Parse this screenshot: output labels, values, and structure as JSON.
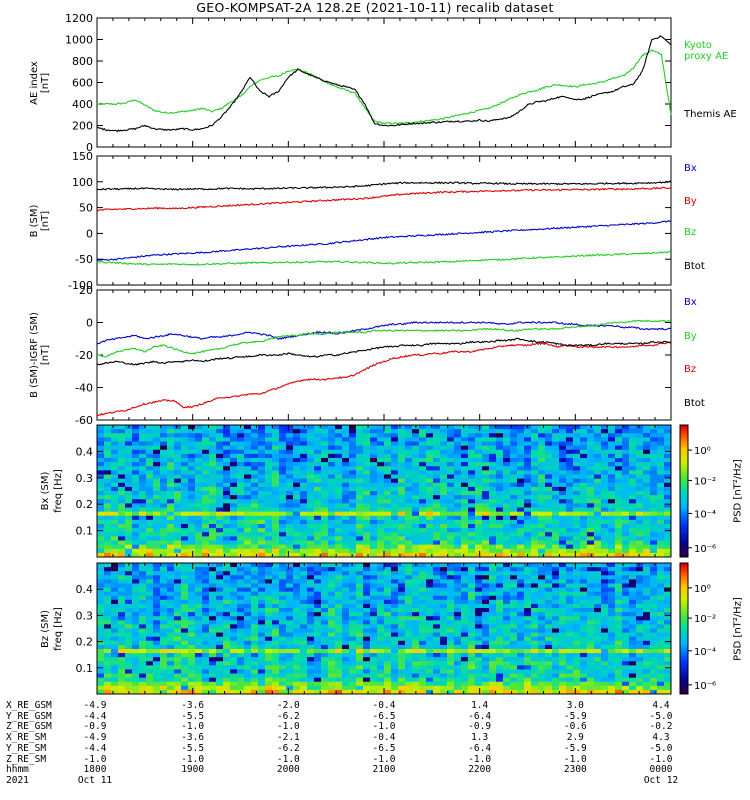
{
  "title": "GEO-KOMPSAT-2A 128.2E (2021-10-11) recalib dataset",
  "colors": {
    "black": "#000000",
    "blue": "#0000cc",
    "red": "#dd0000",
    "green": "#22cc22"
  },
  "chart_data": [
    {
      "type": "line",
      "panel": "ae",
      "ylabel": "AE index",
      "yunit": "[nT]",
      "ylim": [
        0,
        1200
      ],
      "yticks": [
        "0",
        "200",
        "400",
        "600",
        "800",
        "1000",
        "1200"
      ],
      "x_hours": [
        18.0,
        18.1,
        18.2,
        18.3,
        18.4,
        18.5,
        18.6,
        18.7,
        18.8,
        18.9,
        19.0,
        19.1,
        19.2,
        19.3,
        19.4,
        19.5,
        19.6,
        19.7,
        19.8,
        19.9,
        20.0,
        20.1,
        20.2,
        20.3,
        20.4,
        20.5,
        20.6,
        20.7,
        20.8,
        20.9,
        21.0,
        21.1,
        21.2,
        21.3,
        21.4,
        21.5,
        21.6,
        21.7,
        21.8,
        21.9,
        22.0,
        22.1,
        22.2,
        22.3,
        22.4,
        22.5,
        22.6,
        22.7,
        22.8,
        22.9,
        23.0,
        23.1,
        23.2,
        23.3,
        23.4,
        23.5,
        23.6,
        23.7,
        23.8,
        23.9,
        24.0
      ],
      "series": [
        {
          "name": "Kyoto proxy AE",
          "color": "#22cc22",
          "values": [
            400,
            400,
            400,
            410,
            440,
            390,
            340,
            320,
            320,
            330,
            340,
            360,
            330,
            360,
            420,
            470,
            560,
            620,
            650,
            660,
            710,
            720,
            690,
            650,
            600,
            560,
            530,
            500,
            360,
            240,
            220,
            220,
            220,
            230,
            240,
            250,
            260,
            280,
            300,
            320,
            340,
            360,
            400,
            440,
            480,
            510,
            530,
            560,
            580,
            570,
            560,
            580,
            590,
            610,
            640,
            660,
            730,
            850,
            900,
            860,
            300
          ]
        },
        {
          "name": "Themis AE",
          "color": "#000000",
          "values": [
            180,
            160,
            150,
            160,
            170,
            200,
            170,
            160,
            160,
            170,
            160,
            170,
            200,
            280,
            380,
            500,
            650,
            520,
            470,
            520,
            650,
            720,
            680,
            640,
            610,
            580,
            560,
            530,
            400,
            220,
            200,
            200,
            210,
            220,
            220,
            230,
            230,
            240,
            240,
            240,
            250,
            240,
            260,
            270,
            320,
            390,
            420,
            430,
            460,
            470,
            440,
            450,
            480,
            500,
            520,
            560,
            580,
            700,
            1000,
            1030,
            950
          ]
        }
      ]
    },
    {
      "type": "line",
      "panel": "b",
      "ylabel": "B (SM)",
      "yunit": "[nT]",
      "ylim": [
        -100,
        150
      ],
      "yticks": [
        "-100",
        "-50",
        "0",
        "50",
        "100",
        "150"
      ],
      "x_hours": [
        18.0,
        18.1,
        18.2,
        18.3,
        18.4,
        18.5,
        18.6,
        18.7,
        18.8,
        18.9,
        19.0,
        19.1,
        19.2,
        19.3,
        19.4,
        19.5,
        19.6,
        19.7,
        19.8,
        19.9,
        20.0,
        20.1,
        20.2,
        20.3,
        20.4,
        20.5,
        20.6,
        20.7,
        20.8,
        20.9,
        21.0,
        21.1,
        21.2,
        21.3,
        21.4,
        21.5,
        21.6,
        21.7,
        21.8,
        21.9,
        22.0,
        22.1,
        22.2,
        22.3,
        22.4,
        22.5,
        22.6,
        22.7,
        22.8,
        22.9,
        23.0,
        23.1,
        23.2,
        23.3,
        23.4,
        23.5,
        23.6,
        23.7,
        23.8,
        23.9,
        24.0
      ],
      "series": [
        {
          "name": "Bx",
          "color": "#0000cc",
          "values": [
            -52,
            -51,
            -50,
            -48,
            -46,
            -44,
            -42,
            -41,
            -40,
            -39,
            -38,
            -37,
            -36,
            -34,
            -33,
            -32,
            -30,
            -29,
            -28,
            -26,
            -25,
            -24,
            -22,
            -21,
            -20,
            -18,
            -16,
            -14,
            -12,
            -10,
            -8,
            -7,
            -6,
            -5,
            -4,
            -3,
            -2,
            -1,
            0,
            1,
            2,
            3,
            4,
            5,
            6,
            7,
            8,
            9,
            10,
            11,
            12,
            13,
            14,
            15,
            16,
            17,
            18,
            19,
            20,
            22,
            24
          ]
        },
        {
          "name": "By",
          "color": "#dd0000",
          "values": [
            45,
            46,
            47,
            47,
            48,
            48,
            49,
            49,
            48,
            49,
            50,
            51,
            52,
            53,
            54,
            55,
            56,
            57,
            58,
            59,
            60,
            61,
            62,
            63,
            64,
            65,
            66,
            67,
            68,
            70,
            72,
            74,
            76,
            77,
            78,
            79,
            80,
            80,
            81,
            81,
            82,
            82,
            83,
            83,
            83,
            84,
            84,
            84,
            84,
            85,
            85,
            85,
            85,
            86,
            86,
            86,
            86,
            87,
            87,
            88,
            88
          ]
        },
        {
          "name": "Bz",
          "color": "#22cc22",
          "values": [
            -55,
            -56,
            -57,
            -58,
            -59,
            -60,
            -60,
            -60,
            -59,
            -60,
            -60,
            -60,
            -59,
            -59,
            -58,
            -58,
            -57,
            -57,
            -57,
            -56,
            -56,
            -56,
            -56,
            -55,
            -55,
            -55,
            -55,
            -56,
            -56,
            -57,
            -58,
            -58,
            -57,
            -57,
            -56,
            -56,
            -55,
            -55,
            -54,
            -53,
            -52,
            -51,
            -51,
            -50,
            -49,
            -48,
            -47,
            -47,
            -46,
            -45,
            -44,
            -43,
            -42,
            -42,
            -41,
            -40,
            -40,
            -39,
            -38,
            -37,
            -36
          ]
        },
        {
          "name": "Btot",
          "color": "#000000",
          "values": [
            85,
            86,
            86,
            86,
            87,
            87,
            86,
            86,
            85,
            86,
            86,
            86,
            86,
            87,
            87,
            87,
            86,
            87,
            87,
            87,
            88,
            88,
            88,
            89,
            89,
            90,
            90,
            91,
            92,
            94,
            96,
            97,
            98,
            98,
            98,
            98,
            98,
            98,
            98,
            97,
            97,
            97,
            97,
            96,
            96,
            96,
            96,
            96,
            96,
            96,
            96,
            96,
            96,
            97,
            97,
            97,
            97,
            98,
            98,
            99,
            100
          ]
        }
      ]
    },
    {
      "type": "line",
      "panel": "dbb",
      "ylabel": "B (SM)-IGRF (SM)",
      "yunit": "[nT]",
      "ylim": [
        -60,
        20
      ],
      "yticks": [
        "-60",
        "-40",
        "-20",
        "0",
        "20"
      ],
      "x_hours": [
        18.0,
        18.1,
        18.2,
        18.3,
        18.4,
        18.5,
        18.6,
        18.7,
        18.8,
        18.9,
        19.0,
        19.1,
        19.2,
        19.3,
        19.4,
        19.5,
        19.6,
        19.7,
        19.8,
        19.9,
        20.0,
        20.1,
        20.2,
        20.3,
        20.4,
        20.5,
        20.6,
        20.7,
        20.8,
        20.9,
        21.0,
        21.1,
        21.2,
        21.3,
        21.4,
        21.5,
        21.6,
        21.7,
        21.8,
        21.9,
        22.0,
        22.1,
        22.2,
        22.3,
        22.4,
        22.5,
        22.6,
        22.7,
        22.8,
        22.9,
        23.0,
        23.1,
        23.2,
        23.3,
        23.4,
        23.5,
        23.6,
        23.7,
        23.8,
        23.9,
        24.0
      ],
      "series": [
        {
          "name": "Bx",
          "color": "#0000cc",
          "values": [
            -13,
            -11,
            -10,
            -9,
            -8,
            -10,
            -9,
            -8,
            -7,
            -8,
            -9,
            -10,
            -9,
            -9,
            -8,
            -7,
            -6,
            -7,
            -8,
            -10,
            -9,
            -8,
            -7,
            -6,
            -6,
            -7,
            -6,
            -5,
            -4,
            -3,
            -2,
            -1,
            -1,
            0,
            0,
            0,
            0,
            0,
            0,
            0,
            0,
            0,
            -1,
            -1,
            0,
            0,
            0,
            0,
            0,
            -1,
            -1,
            -2,
            -2,
            -2,
            -2,
            -3,
            -3,
            -4,
            -4,
            -4,
            -4
          ]
        },
        {
          "name": "By",
          "color": "#22cc22",
          "values": [
            -20,
            -21,
            -18,
            -17,
            -16,
            -18,
            -15,
            -14,
            -16,
            -18,
            -19,
            -18,
            -17,
            -16,
            -14,
            -13,
            -12,
            -12,
            -10,
            -9,
            -8,
            -8,
            -7,
            -7,
            -7,
            -6,
            -6,
            -6,
            -6,
            -5,
            -5,
            -5,
            -5,
            -5,
            -5,
            -5,
            -5,
            -5,
            -5,
            -5,
            -4,
            -4,
            -4,
            -5,
            -5,
            -4,
            -4,
            -4,
            -4,
            -3,
            -3,
            -2,
            -2,
            -1,
            0,
            0,
            1,
            1,
            1,
            1,
            1
          ]
        },
        {
          "name": "Bz",
          "color": "#dd0000",
          "values": [
            -57,
            -56,
            -55,
            -54,
            -52,
            -50,
            -49,
            -48,
            -48,
            -52,
            -52,
            -50,
            -48,
            -46,
            -46,
            -45,
            -44,
            -44,
            -42,
            -40,
            -38,
            -36,
            -35,
            -35,
            -35,
            -34,
            -34,
            -32,
            -29,
            -26,
            -24,
            -22,
            -21,
            -20,
            -20,
            -19,
            -19,
            -18,
            -18,
            -18,
            -17,
            -16,
            -15,
            -14,
            -14,
            -14,
            -13,
            -13,
            -15,
            -14,
            -15,
            -15,
            -15,
            -15,
            -15,
            -15,
            -15,
            -14,
            -14,
            -13,
            -12
          ]
        },
        {
          "name": "Btot",
          "color": "#000000",
          "values": [
            -26,
            -25,
            -24,
            -25,
            -26,
            -25,
            -24,
            -25,
            -24,
            -24,
            -23,
            -24,
            -23,
            -22,
            -22,
            -21,
            -21,
            -20,
            -20,
            -20,
            -19,
            -20,
            -21,
            -21,
            -20,
            -20,
            -19,
            -18,
            -17,
            -16,
            -15,
            -15,
            -14,
            -14,
            -14,
            -13,
            -13,
            -13,
            -13,
            -12,
            -12,
            -12,
            -11,
            -11,
            -10,
            -11,
            -12,
            -12,
            -13,
            -14,
            -14,
            -14,
            -14,
            -13,
            -13,
            -13,
            -13,
            -13,
            -12,
            -12,
            -12
          ]
        }
      ]
    },
    {
      "type": "heatmap",
      "panel": "spec1",
      "ylabel": "Bx (SM)",
      "yunit": "freq [Hz]",
      "ylim": [
        0,
        0.5
      ],
      "yticks": [
        "0.1",
        "0.2",
        "0.3",
        "0.4"
      ],
      "colorbar_label": "PSD [nT²/Hz]",
      "colorbar_ticks": [
        "10⁰",
        "10⁻²",
        "10⁻⁴",
        "10⁻⁶"
      ]
    },
    {
      "type": "heatmap",
      "panel": "spec2",
      "ylabel": "Bz (SM)",
      "yunit": "freq [Hz]",
      "ylim": [
        0,
        0.5
      ],
      "yticks": [
        "0.1",
        "0.2",
        "0.3",
        "0.4"
      ],
      "colorbar_label": "PSD [nT²/Hz]",
      "colorbar_ticks": [
        "10⁰",
        "10⁻²",
        "10⁻⁴",
        "10⁻⁶"
      ]
    }
  ],
  "legends": {
    "ae": [
      "Kyoto\nproxy AE",
      "Themis AE"
    ],
    "b": [
      "Bx",
      "By",
      "Bz",
      "Btot"
    ],
    "dbb": [
      "Bx",
      "By",
      "Bz",
      "Btot"
    ]
  },
  "time_axis": {
    "row_labels": [
      "X_RE_GSM",
      "Y_RE_GSM",
      "Z_RE_GSM",
      "X_RE_SM",
      "Y_RE_SM",
      "Z_RE_SM",
      "hhmm",
      "2021"
    ],
    "columns": [
      {
        "x": 18.0,
        "vals": [
          "-4.9",
          "-4.4",
          "-0.9",
          "-4.9",
          "-4.4",
          "-1.0",
          "1800",
          "Oct 11"
        ]
      },
      {
        "x": 19.0,
        "vals": [
          "-3.6",
          "-5.5",
          "-1.0",
          "-3.6",
          "-5.5",
          "-1.0",
          "1900",
          ""
        ]
      },
      {
        "x": 20.0,
        "vals": [
          "-2.0",
          "-6.2",
          "-1.0",
          "-2.1",
          "-6.2",
          "-1.0",
          "2000",
          ""
        ]
      },
      {
        "x": 21.0,
        "vals": [
          "-0.4",
          "-6.5",
          "-1.0",
          "-0.4",
          "-6.5",
          "-1.0",
          "2100",
          ""
        ]
      },
      {
        "x": 22.0,
        "vals": [
          "1.4",
          "-6.4",
          "-0.9",
          "1.3",
          "-6.4",
          "-1.0",
          "2200",
          ""
        ]
      },
      {
        "x": 23.0,
        "vals": [
          "3.0",
          "-5.9",
          "-0.6",
          "2.9",
          "-5.9",
          "-1.0",
          "2300",
          ""
        ]
      },
      {
        "x": 24.0,
        "vals": [
          "4.4",
          "-5.0",
          "-0.2",
          "4.3",
          "-5.0",
          "-1.0",
          "0000",
          "Oct 12"
        ]
      }
    ]
  }
}
